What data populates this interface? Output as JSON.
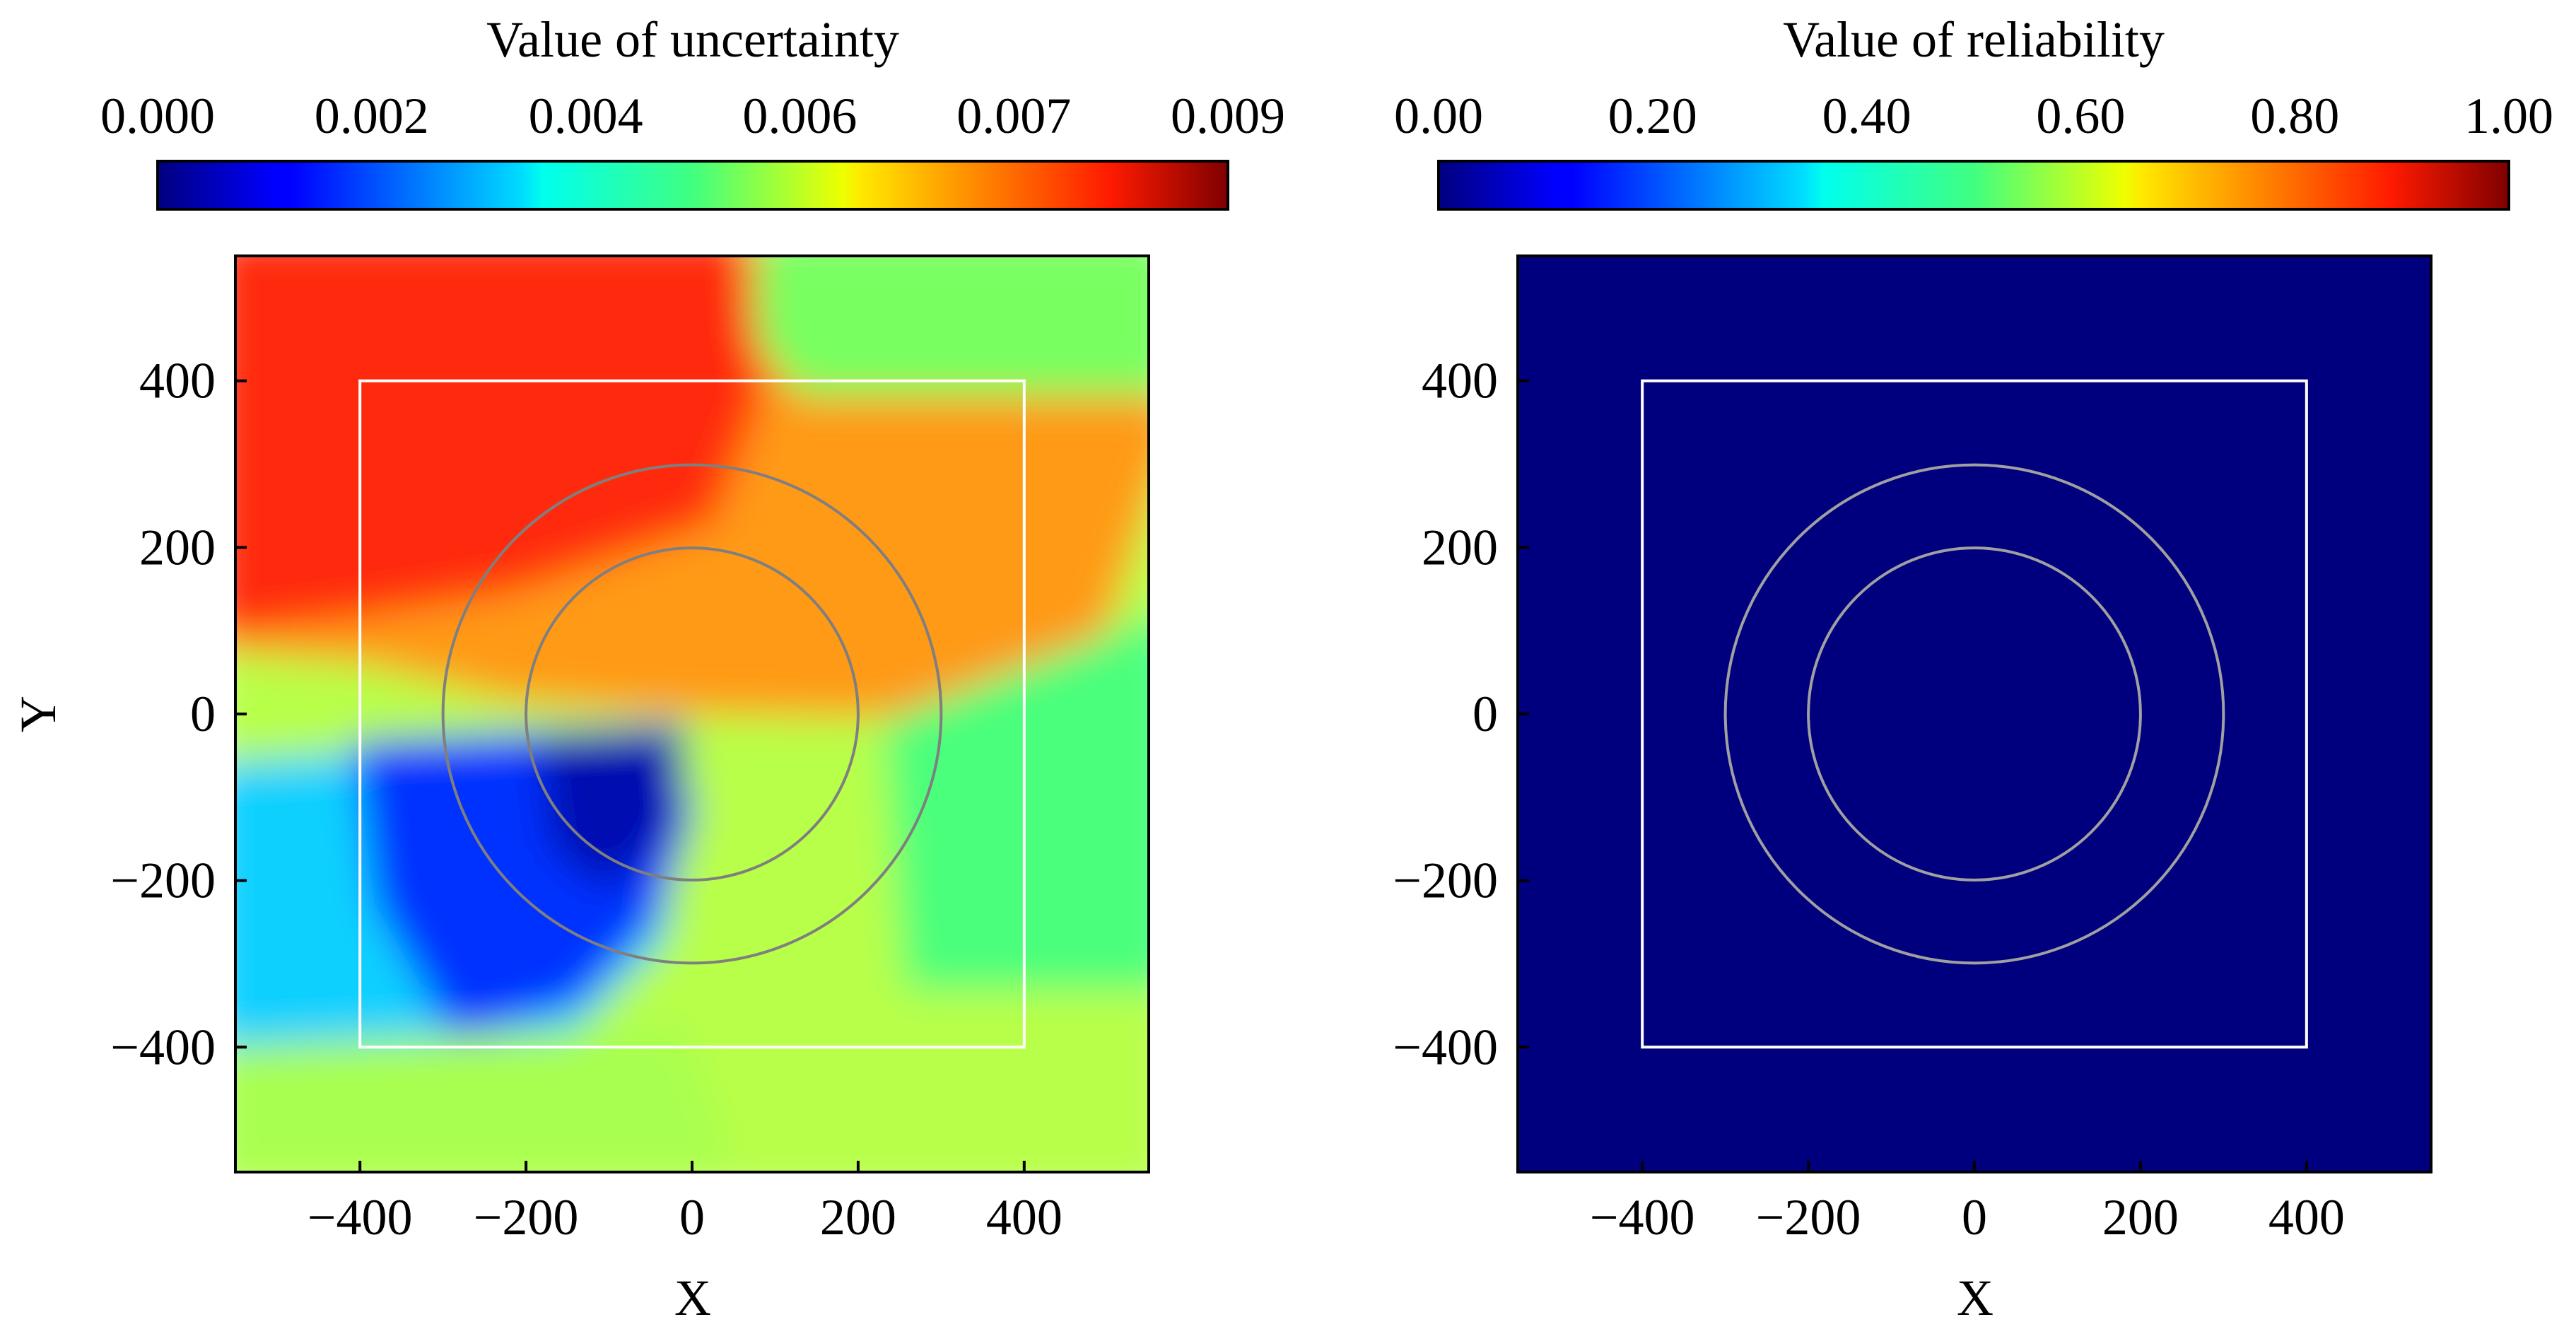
{
  "chart_data": [
    {
      "type": "heatmap",
      "colorbar_title": "Value of uncertainty",
      "colorbar_ticks": [
        "0.000",
        "0.002",
        "0.004",
        "0.006",
        "0.007",
        "0.009"
      ],
      "colorbar_range": [
        0.0,
        0.009
      ],
      "colormap": "jet",
      "xlabel": "X",
      "ylabel": "Y",
      "xlim": [
        -550,
        550
      ],
      "ylim": [
        -550,
        550
      ],
      "xticks": [
        -400,
        -200,
        0,
        200,
        400
      ],
      "yticks": [
        -400,
        -200,
        0,
        200,
        400
      ],
      "xtick_labels": [
        "−400",
        "−200",
        "0",
        "200",
        "400"
      ],
      "ytick_labels": [
        "−400",
        "−200",
        "0",
        "200",
        "400"
      ],
      "square_region": {
        "x": [
          -400,
          400
        ],
        "y": [
          -400,
          400
        ],
        "color": "#ffffff"
      },
      "circles": [
        {
          "cx": 0,
          "cy": 0,
          "r": 300,
          "color": "#7f7f7f"
        },
        {
          "cx": 0,
          "cy": 0,
          "r": 200,
          "color": "#7f7f7f"
        }
      ],
      "field_regions": [
        {
          "name": "top-left high",
          "value": 0.0082
        },
        {
          "name": "upper-right band",
          "value": 0.0068
        },
        {
          "name": "top-right corner",
          "value": 0.0048
        },
        {
          "name": "center-right",
          "value": 0.0046
        },
        {
          "name": "lower-left",
          "value": 0.0028
        },
        {
          "name": "center low",
          "value": 0.0006
        }
      ]
    },
    {
      "type": "heatmap",
      "colorbar_title": "Value of reliability",
      "colorbar_ticks": [
        "0.00",
        "0.20",
        "0.40",
        "0.60",
        "0.80",
        "1.00"
      ],
      "colorbar_range": [
        0.0,
        1.0
      ],
      "colormap": "jet",
      "xlabel": "X",
      "ylabel": "",
      "xlim": [
        -550,
        550
      ],
      "ylim": [
        -550,
        550
      ],
      "xticks": [
        -400,
        -200,
        0,
        200,
        400
      ],
      "yticks": [
        -400,
        -200,
        0,
        200,
        400
      ],
      "xtick_labels": [
        "−400",
        "−200",
        "0",
        "200",
        "400"
      ],
      "ytick_labels": [
        "−400",
        "−200",
        "0",
        "200",
        "400"
      ],
      "uniform_value": 0.0,
      "square_region": {
        "x": [
          -400,
          400
        ],
        "y": [
          -400,
          400
        ],
        "color": "#ffffff"
      },
      "circles": [
        {
          "cx": 0,
          "cy": 0,
          "r": 300,
          "color": "#a0a0a0"
        },
        {
          "cx": 0,
          "cy": 0,
          "r": 200,
          "color": "#a0a0a0"
        }
      ]
    }
  ]
}
